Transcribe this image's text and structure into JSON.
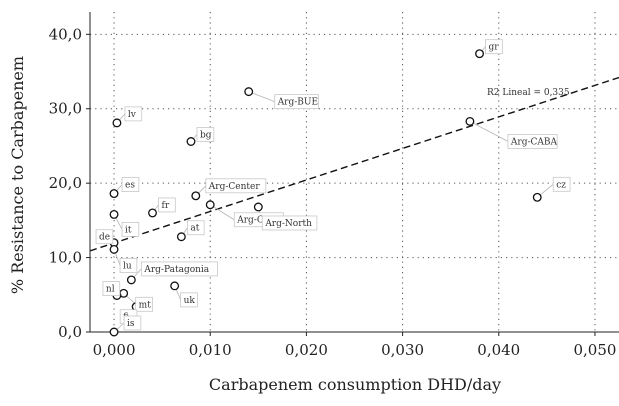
{
  "chart_data": {
    "type": "scatter",
    "xlabel": "Carbapenem consumption DHD/day",
    "ylabel": "% Resistance to Carbapenem",
    "xlim": [
      -0.0025,
      0.0525
    ],
    "ylim": [
      0,
      43
    ],
    "x_ticks": [
      0.0,
      0.01,
      0.02,
      0.03,
      0.04,
      0.05
    ],
    "x_tick_labels": [
      "0,000",
      "0,010",
      "0,020",
      "0,030",
      "0,040",
      "0,050"
    ],
    "y_ticks": [
      0,
      10,
      20,
      30,
      40
    ],
    "y_tick_labels": [
      "0,0",
      "10,0",
      "20,0",
      "30,0",
      "40,0"
    ],
    "grid": true,
    "points": [
      {
        "label": "gr",
        "x": 0.038,
        "y": 37.4
      },
      {
        "label": "Arg-BUE",
        "x": 0.014,
        "y": 32.3
      },
      {
        "label": "Arg-CABA",
        "x": 0.037,
        "y": 28.3
      },
      {
        "label": "lv",
        "x": 0.0003,
        "y": 28.1
      },
      {
        "label": "bg",
        "x": 0.008,
        "y": 25.6
      },
      {
        "label": "es",
        "x": 0.0,
        "y": 18.6
      },
      {
        "label": "Arg-Center",
        "x": 0.0085,
        "y": 18.3
      },
      {
        "label": "cz",
        "x": 0.044,
        "y": 18.1
      },
      {
        "label": "Arg-Cuyo",
        "x": 0.01,
        "y": 17.1
      },
      {
        "label": "Arg-North",
        "x": 0.015,
        "y": 16.8
      },
      {
        "label": "fr",
        "x": 0.004,
        "y": 16.0
      },
      {
        "label": "it",
        "x": 0.0,
        "y": 15.8
      },
      {
        "label": "at",
        "x": 0.007,
        "y": 12.8
      },
      {
        "label": "de",
        "x": 0.0,
        "y": 12.0
      },
      {
        "label": "lu",
        "x": 0.0,
        "y": 11.1
      },
      {
        "label": "Arg-Patagonia",
        "x": 0.0018,
        "y": 7.0
      },
      {
        "label": "uk",
        "x": 0.0063,
        "y": 6.2
      },
      {
        "label": "mt",
        "x": 0.001,
        "y": 5.2
      },
      {
        "label": "nl",
        "x": 0.0003,
        "y": 4.9
      },
      {
        "label": "fi",
        "x": 0.0023,
        "y": 3.4
      },
      {
        "label": "is",
        "x": 0.0,
        "y": 0.0
      }
    ],
    "trendline": {
      "label": "R2 Lineal = 0,335",
      "x": [
        -0.0025,
        0.0525
      ],
      "y": [
        10.9,
        34.2
      ]
    }
  }
}
